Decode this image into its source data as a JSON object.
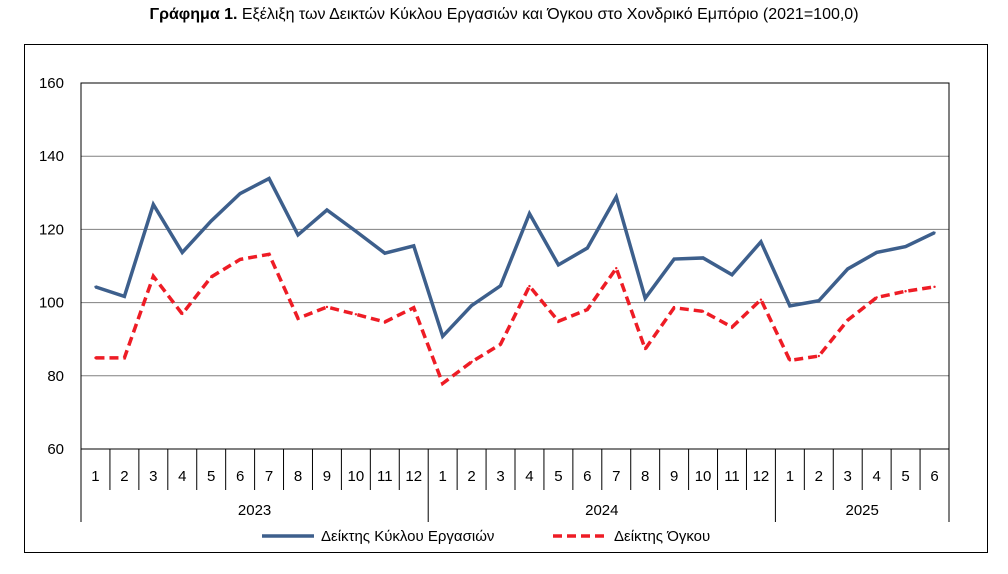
{
  "title": {
    "bold": "Γράφημα 1.",
    "text": " Εξέλιξη των Δεικτών Κύκλου Εργασιών και Όγκου στο Χονδρικό Εμπόριο (2021=100,0)"
  },
  "chart_data": {
    "type": "line",
    "ylim": [
      60,
      160
    ],
    "yticks": [
      60,
      80,
      100,
      120,
      140,
      160
    ],
    "grid": true,
    "legend_position": "bottom",
    "categories": [
      "1",
      "2",
      "3",
      "4",
      "5",
      "6",
      "7",
      "8",
      "9",
      "10",
      "11",
      "12",
      "1",
      "2",
      "3",
      "4",
      "5",
      "6",
      "7",
      "8",
      "9",
      "10",
      "11",
      "12",
      "1",
      "2",
      "3",
      "4",
      "5",
      "6"
    ],
    "year_groups": [
      {
        "label": "2023",
        "count": 12
      },
      {
        "label": "2024",
        "count": 12
      },
      {
        "label": "2025",
        "count": 6
      }
    ],
    "series": [
      {
        "name": "Δείκτης Κύκλου Εργασιών",
        "color": "#3d5f8c",
        "style": "solid",
        "values": [
          104.3,
          101.7,
          126.8,
          113.7,
          122.3,
          129.8,
          133.9,
          118.5,
          125.3,
          119.5,
          113.5,
          115.5,
          90.8,
          99.2,
          104.6,
          124.3,
          110.3,
          114.9,
          128.9,
          101.2,
          111.9,
          112.2,
          107.6,
          116.6,
          99.1,
          100.5,
          109.2,
          113.7,
          115.3,
          119.1
        ]
      },
      {
        "name": "Δείκτης Όγκου",
        "color": "#ee1c25",
        "style": "dashed",
        "values": [
          84.9,
          84.9,
          107.2,
          96.9,
          107.0,
          111.8,
          113.2,
          95.7,
          98.8,
          96.8,
          94.7,
          98.6,
          77.9,
          83.8,
          88.6,
          104.5,
          94.9,
          98.1,
          109.4,
          87.3,
          98.6,
          97.6,
          93.3,
          100.8,
          84.2,
          85.4,
          95.2,
          101.4,
          103.1,
          104.3
        ]
      }
    ]
  }
}
